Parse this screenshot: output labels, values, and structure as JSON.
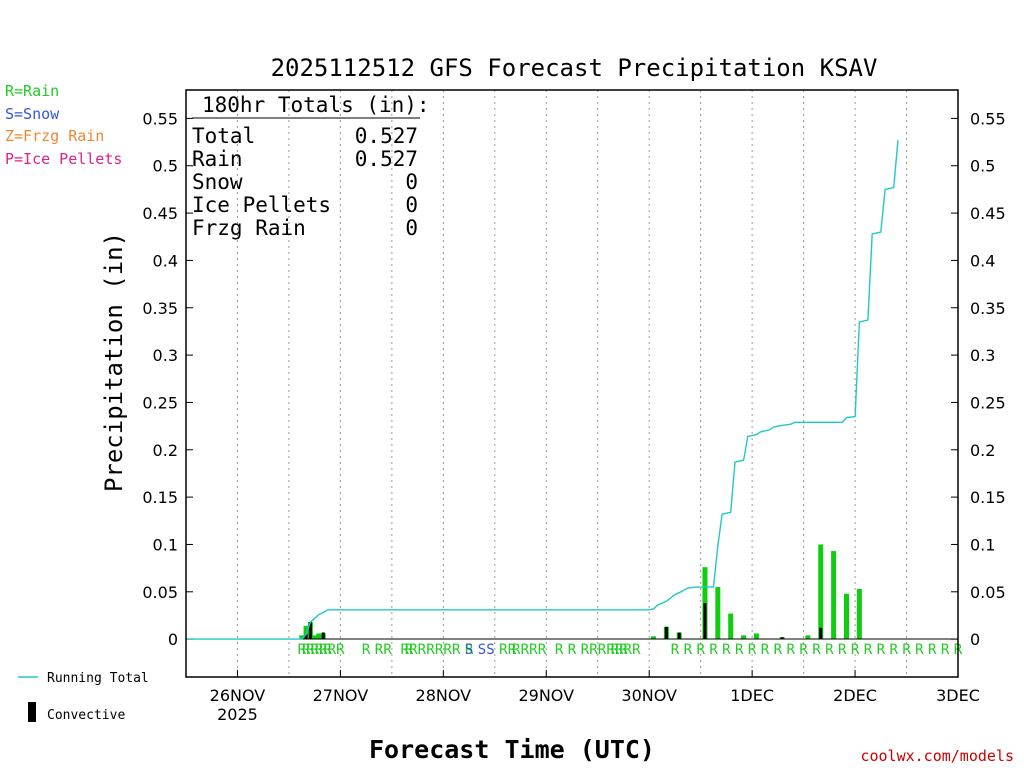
{
  "chart_data": {
    "type": "bar",
    "title": "2025112512 GFS Forecast Precipitation KSAV",
    "xlabel": "Forecast Time (UTC)",
    "ylabel": "Precipitation (in)",
    "ylim": [
      -0.04,
      0.58
    ],
    "xlim_hours": [
      -12,
      168
    ],
    "y_ticks": [
      {
        "v": 0,
        "label": "0"
      },
      {
        "v": 0.05,
        "label": "0.05"
      },
      {
        "v": 0.1,
        "label": "0.1"
      },
      {
        "v": 0.15,
        "label": "0.15"
      },
      {
        "v": 0.2,
        "label": "0.2"
      },
      {
        "v": 0.25,
        "label": "0.25"
      },
      {
        "v": 0.3,
        "label": "0.3"
      },
      {
        "v": 0.35,
        "label": "0.35"
      },
      {
        "v": 0.4,
        "label": "0.4"
      },
      {
        "v": 0.45,
        "label": "0.45"
      },
      {
        "v": 0.5,
        "label": "0.5"
      },
      {
        "v": 0.55,
        "label": "0.55"
      }
    ],
    "x_ticks": [
      {
        "h": 0,
        "label": "26NOV",
        "sub": "2025"
      },
      {
        "h": 24,
        "label": "27NOV"
      },
      {
        "h": 48,
        "label": "28NOV"
      },
      {
        "h": 72,
        "label": "29NOV"
      },
      {
        "h": 96,
        "label": "30NOV"
      },
      {
        "h": 120,
        "label": "1DEC"
      },
      {
        "h": 144,
        "label": "2DEC"
      },
      {
        "h": 168,
        "label": "3DEC"
      }
    ],
    "grid_hours": [
      0,
      12,
      24,
      36,
      48,
      60,
      72,
      84,
      96,
      108,
      120,
      132,
      144,
      156
    ],
    "running_total": [
      [
        -12,
        0
      ],
      [
        15,
        0
      ],
      [
        16,
        0.005
      ],
      [
        17,
        0.018
      ],
      [
        18,
        0.022
      ],
      [
        19,
        0.026
      ],
      [
        20,
        0.028
      ],
      [
        21,
        0.031
      ],
      [
        96,
        0.031
      ],
      [
        97,
        0.032
      ],
      [
        98,
        0.036
      ],
      [
        99,
        0.038
      ],
      [
        100,
        0.04
      ],
      [
        102,
        0.047
      ],
      [
        103,
        0.049
      ],
      [
        105,
        0.054
      ],
      [
        107,
        0.055
      ],
      [
        108,
        0.055
      ],
      [
        111,
        0.055
      ],
      [
        112,
        0.098
      ],
      [
        113,
        0.132
      ],
      [
        115,
        0.134
      ],
      [
        116,
        0.187
      ],
      [
        118,
        0.189
      ],
      [
        119,
        0.214
      ],
      [
        121,
        0.216
      ],
      [
        122,
        0.219
      ],
      [
        124,
        0.221
      ],
      [
        125,
        0.224
      ],
      [
        126,
        0.225
      ],
      [
        129,
        0.227
      ],
      [
        130,
        0.229
      ],
      [
        141,
        0.229
      ],
      [
        142,
        0.234
      ],
      [
        144,
        0.235
      ],
      [
        145,
        0.335
      ],
      [
        147,
        0.337
      ],
      [
        148,
        0.428
      ],
      [
        150,
        0.43
      ],
      [
        151,
        0.475
      ],
      [
        153,
        0.477
      ],
      [
        154,
        0.527
      ]
    ],
    "series": [
      {
        "name": "Total (3hr)",
        "color": "#11cc11",
        "values": [
          [
            15,
            0.004
          ],
          [
            16,
            0.014
          ],
          [
            17,
            0.018
          ],
          [
            18,
            0.004
          ],
          [
            19,
            0.006
          ],
          [
            20,
            0.006
          ],
          [
            97,
            0.003
          ],
          [
            100,
            0.013
          ],
          [
            103,
            0.007
          ],
          [
            109,
            0.076
          ],
          [
            112,
            0.055
          ],
          [
            115,
            0.027
          ],
          [
            118,
            0.004
          ],
          [
            121,
            0.006
          ],
          [
            127,
            0.002
          ],
          [
            133,
            0.004
          ],
          [
            136,
            0.1
          ],
          [
            139,
            0.093
          ],
          [
            142,
            0.048
          ],
          [
            145,
            0.053
          ]
        ]
      },
      {
        "name": "Convective",
        "color": "#000000",
        "values": [
          [
            16,
            0.005
          ],
          [
            17,
            0.018
          ],
          [
            20,
            0.007
          ],
          [
            100,
            0.013
          ],
          [
            103,
            0.007
          ],
          [
            109,
            0.038
          ],
          [
            127,
            0.002
          ],
          [
            136,
            0.012
          ]
        ]
      }
    ],
    "ptype_markers": {
      "rain_hours": [
        15,
        16,
        17,
        18,
        19,
        20,
        21,
        22,
        24,
        30,
        33,
        35,
        39,
        40,
        41,
        43,
        45,
        47,
        49,
        51,
        54,
        62,
        64,
        65,
        67,
        69,
        71,
        75,
        78,
        81,
        83,
        85,
        87,
        88,
        89,
        90,
        91,
        93,
        102,
        105,
        108,
        111,
        114,
        117,
        120,
        123,
        126,
        129,
        132,
        135,
        138,
        141,
        144,
        147,
        150,
        153,
        156,
        159,
        162,
        165,
        168
      ],
      "snow_hours": [
        54,
        57,
        59
      ]
    },
    "legend": {
      "ptype": [
        {
          "label": "R=Rain",
          "color": "#22cc22"
        },
        {
          "label": "S=Snow",
          "color": "#3355dd"
        },
        {
          "label": "Z=Frzg Rain",
          "color": "#ee8833"
        },
        {
          "label": "P=Ice Pellets",
          "color": "#dd2288"
        }
      ],
      "running_total_label": "Running Total",
      "convective_label": "Convective",
      "running_total_color": "#20c8c8"
    },
    "totals": {
      "header": "180hr Totals (in):",
      "rows": [
        {
          "label": "Total",
          "value": "0.527"
        },
        {
          "label": "Rain",
          "value": "0.527"
        },
        {
          "label": "Snow",
          "value": "0"
        },
        {
          "label": "Ice Pellets",
          "value": "0"
        },
        {
          "label": "Frzg Rain",
          "value": "0"
        }
      ]
    },
    "credit": "coolwx.com/models",
    "credit_color": "#cc0000"
  }
}
